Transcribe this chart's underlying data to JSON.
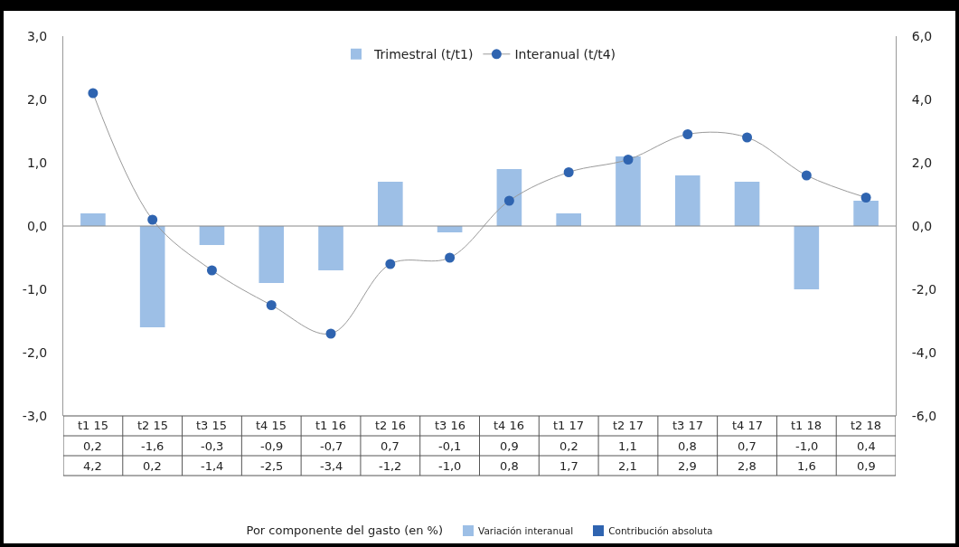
{
  "chart_data": {
    "type": "bar",
    "categories": [
      "t1 15",
      "t2 15",
      "t3 15",
      "t4 15",
      "t1 16",
      "t2 16",
      "t3 16",
      "t4 16",
      "t1 17",
      "t2 17",
      "t3 17",
      "t4 17",
      "t1 18",
      "t2 18"
    ],
    "series": [
      {
        "name": "Trimestral (t/t1)",
        "color": "#9dbfe6",
        "values": [
          0.2,
          -1.6,
          -0.3,
          -0.9,
          -0.7,
          0.7,
          -0.1,
          0.9,
          0.2,
          1.1,
          0.8,
          0.7,
          -1.0,
          0.4
        ],
        "value_labels": [
          "0,2",
          "-1,6",
          "-0,3",
          "-0,9",
          "-0,7",
          "0,7",
          "-0,1",
          "0,9",
          "0,2",
          "1,1",
          "0,8",
          "0,7",
          "-1,0",
          "0,4"
        ]
      },
      {
        "name": "Interanual (t/t4)",
        "type": "line",
        "axis": "y2",
        "color": "#2f64b0",
        "values": [
          4.2,
          0.2,
          -1.4,
          -2.5,
          -3.4,
          -1.2,
          -1.0,
          0.8,
          1.7,
          2.1,
          2.9,
          2.8,
          1.6,
          0.9
        ],
        "value_labels": [
          "4,2",
          "0,2",
          "-1,4",
          "-2,5",
          "-3,4",
          "-1,2",
          "-1,0",
          "0,8",
          "1,7",
          "2,1",
          "2,9",
          "2,8",
          "1,6",
          "0,9"
        ]
      }
    ],
    "ylim": [
      -3,
      3
    ],
    "yticks": [
      {
        "value": -3,
        "label": "-3,0"
      },
      {
        "value": -2,
        "label": "-2,0"
      },
      {
        "value": -1,
        "label": "-1,0"
      },
      {
        "value": 0,
        "label": "0,0"
      },
      {
        "value": 1,
        "label": "1,0"
      },
      {
        "value": 2,
        "label": "2,0"
      },
      {
        "value": 3,
        "label": "3,0"
      }
    ],
    "y2lim": [
      -6,
      6
    ],
    "y2ticks": [
      {
        "value": -6,
        "label": "-6,0"
      },
      {
        "value": -4,
        "label": "-4,0"
      },
      {
        "value": -2,
        "label": "-2,0"
      },
      {
        "value": 0,
        "label": "0,0"
      },
      {
        "value": 2,
        "label": "2,0"
      },
      {
        "value": 4,
        "label": "4,0"
      },
      {
        "value": 6,
        "label": "6,0"
      }
    ],
    "ref_lines": [
      {
        "axis": "y",
        "value": 0,
        "color": "#888888"
      }
    ],
    "grid": false,
    "legend": "top",
    "marker": "circle",
    "line_style": "solid",
    "annotations": [
      "Por componente del gasto (en %)",
      "Variación interanual",
      "Contribución absoluta"
    ]
  }
}
